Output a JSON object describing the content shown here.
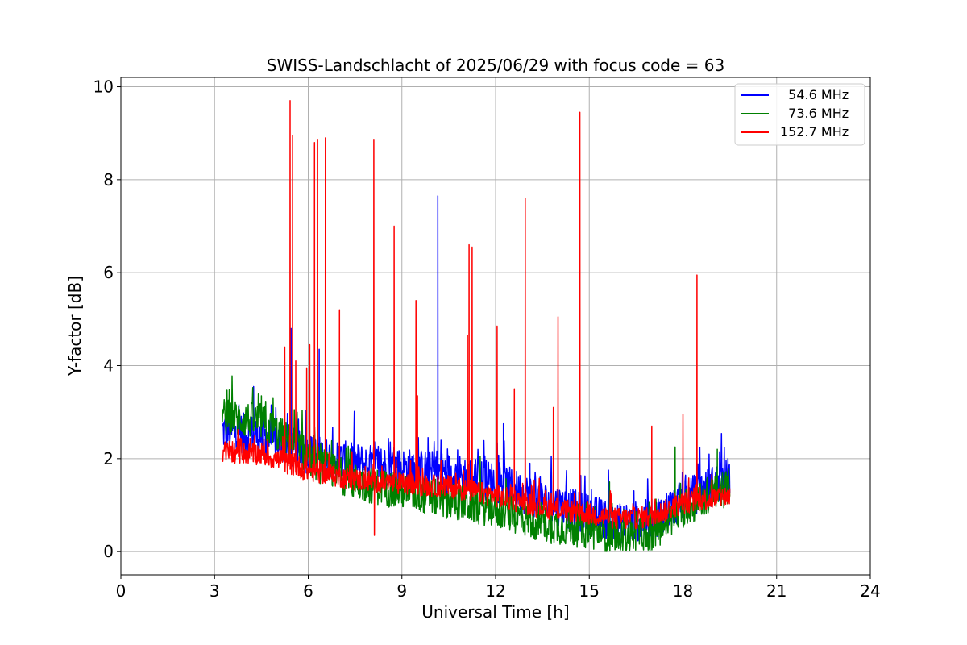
{
  "chart_data": {
    "type": "line",
    "title": "SWISS-Landschlacht of 2025/06/29 with focus code = 63",
    "xlabel": "Universal Time [h]",
    "ylabel": "Y-factor [dB]",
    "xlim": [
      0,
      24
    ],
    "ylim": [
      -0.5,
      10.2
    ],
    "xticks": [
      0,
      3,
      6,
      9,
      12,
      15,
      18,
      21,
      24
    ],
    "xtick_labels": [
      "0",
      "3",
      "6",
      "9",
      "12",
      "15",
      "18",
      "21",
      "24"
    ],
    "yticks": [
      0,
      2,
      4,
      6,
      8,
      10
    ],
    "ytick_labels": [
      "0",
      "2",
      "4",
      "6",
      "8",
      "10"
    ],
    "grid": true,
    "legend_position": "top-right",
    "series": [
      {
        "name": "  54.6 MHz",
        "color": "#0000ff",
        "baseline": [
          [
            3.25,
            2.6
          ],
          [
            4.5,
            2.5
          ],
          [
            6.0,
            2.1
          ],
          [
            7.5,
            1.9
          ],
          [
            9.0,
            1.8
          ],
          [
            10.5,
            1.7
          ],
          [
            12.0,
            1.5
          ],
          [
            13.5,
            1.1
          ],
          [
            15.0,
            0.8
          ],
          [
            16.0,
            0.6
          ],
          [
            17.0,
            0.7
          ],
          [
            18.0,
            1.1
          ],
          [
            19.5,
            1.6
          ]
        ],
        "noise": 0.55,
        "spikes": [
          [
            4.25,
            3.55
          ],
          [
            5.45,
            4.8
          ],
          [
            6.35,
            4.35
          ],
          [
            10.15,
            7.65
          ],
          [
            12.25,
            2.75
          ],
          [
            13.1,
            1.9
          ]
        ]
      },
      {
        "name": "  73.6 MHz",
        "color": "#008000",
        "baseline": [
          [
            3.25,
            2.9
          ],
          [
            4.5,
            2.8
          ],
          [
            5.5,
            2.3
          ],
          [
            6.5,
            1.8
          ],
          [
            7.5,
            1.5
          ],
          [
            9.0,
            1.3
          ],
          [
            10.5,
            1.1
          ],
          [
            12.0,
            0.9
          ],
          [
            13.5,
            0.6
          ],
          [
            15.0,
            0.45
          ],
          [
            16.0,
            0.35
          ],
          [
            17.0,
            0.4
          ],
          [
            18.0,
            0.9
          ],
          [
            19.5,
            1.4
          ]
        ],
        "noise": 0.5,
        "spikes": [
          [
            4.5,
            3.35
          ],
          [
            15.65,
            1.5
          ],
          [
            17.75,
            2.25
          ],
          [
            19.1,
            2.2
          ]
        ]
      },
      {
        "name": "152.7 MHz",
        "color": "#ff0000",
        "baseline": [
          [
            3.25,
            2.15
          ],
          [
            4.5,
            2.1
          ],
          [
            6.0,
            1.75
          ],
          [
            7.5,
            1.55
          ],
          [
            9.0,
            1.45
          ],
          [
            10.5,
            1.4
          ],
          [
            12.0,
            1.2
          ],
          [
            13.5,
            0.95
          ],
          [
            15.0,
            0.8
          ],
          [
            16.0,
            0.7
          ],
          [
            17.0,
            0.75
          ],
          [
            18.0,
            1.05
          ],
          [
            19.5,
            1.2
          ]
        ],
        "noise": 0.3,
        "spikes": [
          [
            5.25,
            4.4
          ],
          [
            5.42,
            9.7
          ],
          [
            5.5,
            8.95
          ],
          [
            5.6,
            4.1
          ],
          [
            5.95,
            3.95
          ],
          [
            6.05,
            4.45
          ],
          [
            6.2,
            8.8
          ],
          [
            6.3,
            8.85
          ],
          [
            6.55,
            8.9
          ],
          [
            7.0,
            5.2
          ],
          [
            8.1,
            8.85
          ],
          [
            8.12,
            0.35
          ],
          [
            8.75,
            7.0
          ],
          [
            9.45,
            5.4
          ],
          [
            9.5,
            3.35
          ],
          [
            11.1,
            4.65
          ],
          [
            11.15,
            6.6
          ],
          [
            11.25,
            6.55
          ],
          [
            12.05,
            4.85
          ],
          [
            12.6,
            3.5
          ],
          [
            12.95,
            7.6
          ],
          [
            13.85,
            3.1
          ],
          [
            14.0,
            5.05
          ],
          [
            14.7,
            9.45
          ],
          [
            17.0,
            2.7
          ],
          [
            18.0,
            2.95
          ],
          [
            18.45,
            5.95
          ]
        ]
      }
    ]
  }
}
